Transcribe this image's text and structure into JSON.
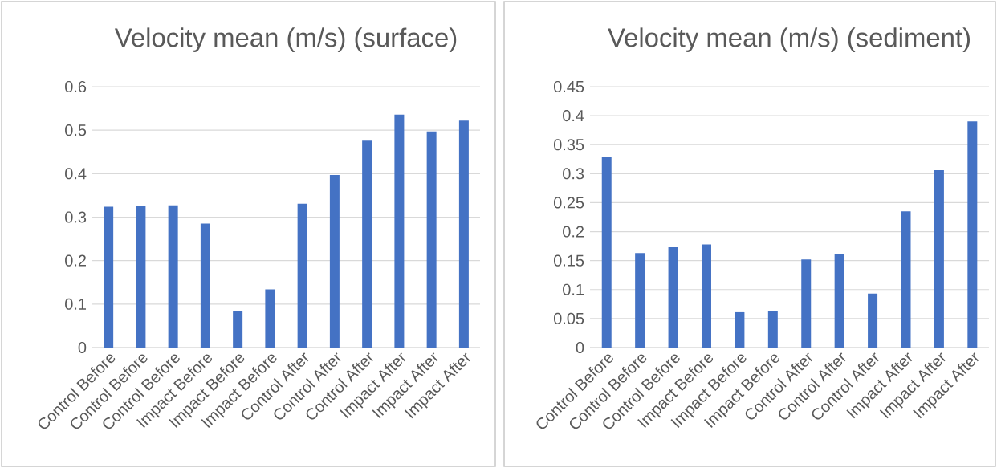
{
  "chart_data": [
    {
      "type": "bar",
      "title": "Velocity mean (m/s) (surface)",
      "categories": [
        "Control Before",
        "Control Before",
        "Control Before",
        "Impact Before",
        "Impact Before",
        "Impact Before",
        "Control After",
        "Control After",
        "Control After",
        "Impact After",
        "Impact After",
        "Impact After"
      ],
      "values": [
        0.324,
        0.325,
        0.327,
        0.285,
        0.083,
        0.134,
        0.331,
        0.397,
        0.476,
        0.536,
        0.497,
        0.522
      ],
      "color": "#4472c4",
      "ylim": [
        0,
        0.6
      ],
      "yticks": [
        0,
        0.1,
        0.2,
        0.3,
        0.4,
        0.5,
        0.6
      ],
      "grid": "y"
    },
    {
      "type": "bar",
      "title": "Velocity mean (m/s) (sediment)",
      "categories": [
        "Control Before",
        "Control Before",
        "Control Before",
        "Impact Before",
        "Impact Before",
        "Impact Before",
        "Control After",
        "Control After",
        "Control After",
        "Impact After",
        "Impact After",
        "Impact After"
      ],
      "values": [
        0.328,
        0.163,
        0.173,
        0.178,
        0.061,
        0.063,
        0.152,
        0.162,
        0.093,
        0.235,
        0.306,
        0.39
      ],
      "color": "#4472c4",
      "ylim": [
        0,
        0.45
      ],
      "yticks": [
        0,
        0.05,
        0.1,
        0.15,
        0.2,
        0.25,
        0.3,
        0.35,
        0.4,
        0.45
      ],
      "grid": "y"
    }
  ]
}
